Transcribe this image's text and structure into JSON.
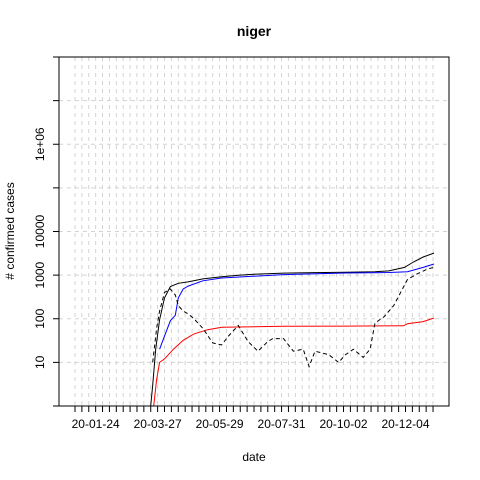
{
  "chart_data": {
    "type": "line",
    "title": "niger",
    "xlabel": "date",
    "ylabel": "# confirmed cases",
    "x_tick_labels": [
      "20-01-24",
      "20-03-27",
      "20-05-29",
      "20-07-31",
      "20-10-02",
      "20-12-04"
    ],
    "y_tick_labels": [
      "10",
      "100",
      "1000",
      "10000",
      "1e+06"
    ],
    "y_tick_values": [
      10,
      100,
      1000,
      10000,
      1000000
    ],
    "y_scale": "log",
    "ylim": [
      1,
      100000000
    ],
    "xlim": [
      "2020-01-01",
      "2021-01-01"
    ],
    "grid": true,
    "series": [
      {
        "color": "#000000",
        "dash": "solid",
        "x": [
          "2020-03-18",
          "2020-03-20",
          "2020-03-23",
          "2020-03-27",
          "2020-04-01",
          "2020-04-07",
          "2020-04-15",
          "2020-04-25",
          "2020-05-10",
          "2020-05-29",
          "2020-06-15",
          "2020-07-01",
          "2020-07-31",
          "2020-09-01",
          "2020-10-02",
          "2020-11-01",
          "2020-11-15",
          "2020-12-01",
          "2020-12-10",
          "2020-12-20",
          "2020-12-31"
        ],
        "values": [
          1,
          3,
          20,
          95,
          300,
          550,
          650,
          700,
          820,
          920,
          990,
          1050,
          1110,
          1140,
          1170,
          1200,
          1250,
          1500,
          2000,
          2600,
          3200
        ]
      },
      {
        "color": "#0000ff",
        "dash": "solid",
        "x": [
          "2020-03-27",
          "2020-04-01",
          "2020-04-07",
          "2020-04-12",
          "2020-04-15",
          "2020-04-20",
          "2020-04-25",
          "2020-05-10",
          "2020-05-29",
          "2020-07-31",
          "2020-10-02",
          "2020-11-15",
          "2020-12-04",
          "2020-12-20",
          "2020-12-31"
        ],
        "values": [
          20,
          40,
          90,
          120,
          300,
          480,
          560,
          740,
          860,
          1030,
          1120,
          1150,
          1200,
          1500,
          1800
        ]
      },
      {
        "color": "#ff0000",
        "dash": "solid",
        "x": [
          "2020-03-21",
          "2020-03-24",
          "2020-03-27",
          "2020-04-01",
          "2020-04-05",
          "2020-04-10",
          "2020-04-20",
          "2020-05-01",
          "2020-05-15",
          "2020-05-29",
          "2020-07-31",
          "2020-10-02",
          "2020-11-30",
          "2020-12-04",
          "2020-12-20",
          "2020-12-31"
        ],
        "values": [
          1,
          4,
          10,
          12,
          15,
          20,
          32,
          45,
          56,
          64,
          67,
          68,
          69,
          77,
          86,
          104
        ]
      },
      {
        "color": "#000000",
        "dash": "dashed",
        "x": [
          "2020-03-20",
          "2020-03-24",
          "2020-03-27",
          "2020-04-01",
          "2020-04-07",
          "2020-04-12",
          "2020-04-15",
          "2020-04-20",
          "2020-04-25",
          "2020-05-01",
          "2020-05-10",
          "2020-05-20",
          "2020-05-29",
          "2020-06-05",
          "2020-06-15",
          "2020-06-25",
          "2020-07-05",
          "2020-07-15",
          "2020-07-20",
          "2020-07-31",
          "2020-08-10",
          "2020-08-20",
          "2020-08-26",
          "2020-09-01",
          "2020-09-15",
          "2020-09-25",
          "2020-10-02",
          "2020-10-10",
          "2020-10-20",
          "2020-10-27",
          "2020-11-01",
          "2020-11-10",
          "2020-11-20",
          "2020-12-04",
          "2020-12-15",
          "2020-12-25",
          "2020-12-31"
        ],
        "values": [
          10,
          60,
          150,
          400,
          480,
          350,
          200,
          150,
          130,
          100,
          60,
          28,
          25,
          40,
          70,
          30,
          18,
          30,
          35,
          35,
          18,
          20,
          8,
          18,
          15,
          10,
          15,
          20,
          13,
          20,
          80,
          110,
          200,
          800,
          1100,
          1400,
          1500
        ]
      }
    ]
  }
}
